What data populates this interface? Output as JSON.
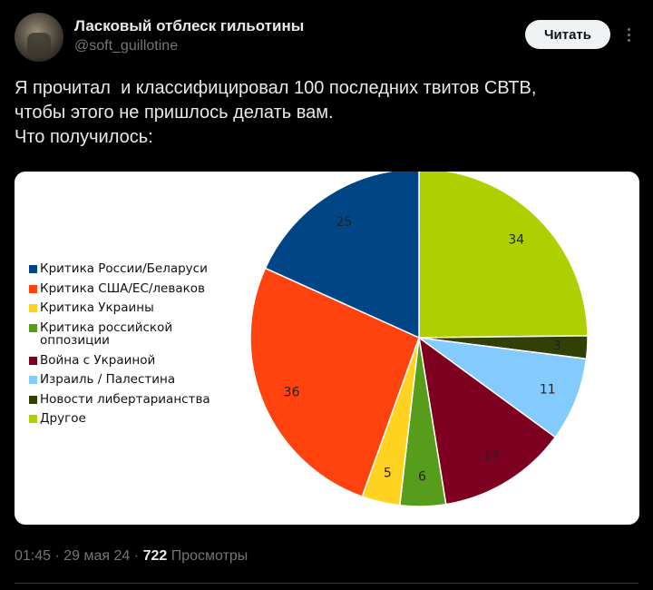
{
  "author": {
    "display_name": "Ласковый отблеск гильотины",
    "handle": "@soft_guillotine"
  },
  "actions": {
    "follow_label": "Читать"
  },
  "tweet": {
    "lines": [
      "Я прочитал  и классифицировал 100 последних твитов СВТВ,",
      "чтобы этого не пришлось делать вам.",
      "Что получилось:"
    ]
  },
  "chart_data": {
    "type": "pie",
    "legend_position": "left",
    "slices": [
      {
        "label": "Критика России/Беларуси",
        "value": 25,
        "color": "#004586"
      },
      {
        "label": "Критика США/ЕС/леваков",
        "value": 36,
        "color": "#ff420e"
      },
      {
        "label": "Критика Украины",
        "value": 5,
        "color": "#ffd320"
      },
      {
        "label": "Критика российской\nоппозиции",
        "value": 6,
        "color": "#579d1c"
      },
      {
        "label": "Война с Украиной",
        "value": 17,
        "color": "#7e0021"
      },
      {
        "label": "Израиль / Палестина",
        "value": 11,
        "color": "#83caff"
      },
      {
        "label": "Новости либертарианства",
        "value": 3,
        "color": "#314004"
      },
      {
        "label": "Другое",
        "value": 34,
        "color": "#aecf00"
      }
    ],
    "draw_order": [
      7,
      6,
      5,
      4,
      3,
      2,
      1,
      0
    ]
  },
  "meta": {
    "time": "01:45",
    "date": "29 мая 24",
    "views_count": "722",
    "views_label": "Просмотры"
  }
}
